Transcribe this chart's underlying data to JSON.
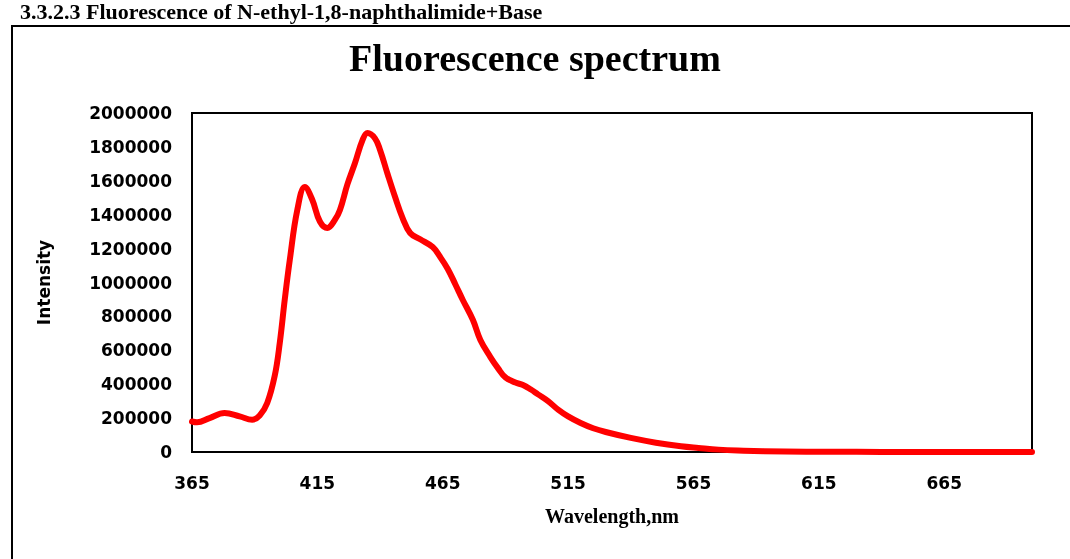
{
  "chart_data": {
    "type": "line",
    "title": "Fluorescence spectrum",
    "annotations": [
      "3.3.2.3 Fluorescence of N-ethyl-1,8-naphthalimide+Base"
    ],
    "xlabel": "Wavelength,nm",
    "ylabel": "Intensity",
    "x": [
      365,
      367,
      372,
      378,
      384,
      389,
      392,
      395,
      398,
      400,
      402,
      404,
      407,
      410,
      413,
      416,
      419,
      422,
      424,
      427,
      430,
      433,
      435,
      438,
      440,
      443,
      446,
      449,
      452,
      456,
      461,
      464,
      467,
      470,
      473,
      477,
      480,
      484,
      487,
      490,
      494,
      497,
      500,
      503,
      507,
      511,
      515,
      520,
      525,
      530,
      540,
      550,
      560,
      567,
      575,
      585,
      593,
      610,
      630,
      650,
      675,
      700
    ],
    "series": [
      {
        "color": "#ff0000",
        "values": [
          180000,
          175000,
          200000,
          230000,
          210000,
          190000,
          215000,
          289000,
          450000,
          643000,
          900000,
          1133000,
          1428000,
          1563000,
          1487000,
          1360000,
          1322000,
          1370000,
          1428000,
          1580000,
          1705000,
          1840000,
          1882000,
          1850000,
          1782000,
          1640000,
          1504000,
          1380000,
          1292000,
          1255000,
          1209000,
          1150000,
          1080000,
          990000,
          897000,
          780000,
          661000,
          560000,
          495000,
          440000,
          410000,
          395000,
          370000,
          340000,
          300000,
          250000,
          210000,
          171000,
          140000,
          118000,
          83000,
          55000,
          34000,
          24000,
          14000,
          8000,
          5000,
          2000,
          1000,
          0,
          0,
          0
        ]
      }
    ],
    "xlim": [
      365,
      700
    ],
    "xticks": [
      365,
      415,
      465,
      515,
      565,
      615,
      665
    ],
    "ylim": [
      0,
      2000000
    ],
    "yticks": [
      0,
      200000,
      400000,
      600000,
      800000,
      1000000,
      1200000,
      1400000,
      1600000,
      1800000,
      2000000
    ],
    "grid": false,
    "marker": "none",
    "line_style": "solid"
  }
}
